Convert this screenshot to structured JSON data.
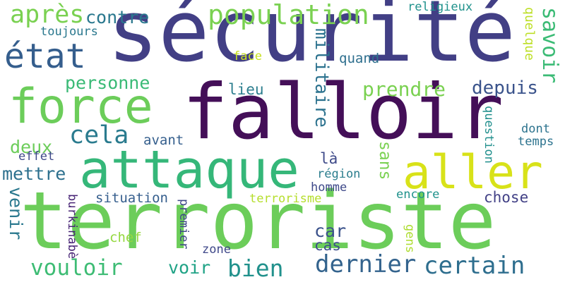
{
  "words": {
    "securite": {
      "text": "sécurité",
      "color": "#423f85"
    },
    "falloir": {
      "text": "falloir",
      "color": "#440f58"
    },
    "terroriste": {
      "text": "terroriste",
      "color": "#6ccd5a"
    },
    "attaque": {
      "text": "attaque",
      "color": "#35b779"
    },
    "aller": {
      "text": "aller",
      "color": "#d8e219"
    },
    "force": {
      "text": "force",
      "color": "#6ccd5a"
    },
    "etat": {
      "text": "état",
      "color": "#355e8d"
    },
    "population": {
      "text": "population",
      "color": "#7ad151"
    },
    "apres": {
      "text": "après",
      "color": "#7ad151"
    },
    "contre": {
      "text": "contre",
      "color": "#2a788e"
    },
    "toujours": {
      "text": "toujours",
      "color": "#2a788e"
    },
    "religieux": {
      "text": "religieux",
      "color": "#20928c"
    },
    "savoir": {
      "text": "savoir",
      "color": "#3bbb75"
    },
    "quelque": {
      "text": "quelque",
      "color": "#bddf26"
    },
    "militaire": {
      "text": "militaire",
      "color": "#2c728e"
    },
    "face": {
      "text": "face",
      "color": "#c8e020"
    },
    "quand": {
      "text": "quand",
      "color": "#2e6f8e"
    },
    "personne": {
      "text": "personne",
      "color": "#3aba76"
    },
    "lieu": {
      "text": "lieu",
      "color": "#2c7e8e"
    },
    "prendre": {
      "text": "prendre",
      "color": "#7ad151"
    },
    "depuis": {
      "text": "depuis",
      "color": "#3a538b"
    },
    "cela": {
      "text": "cela",
      "color": "#2a7b8e"
    },
    "question": {
      "text": "question",
      "color": "#218f8d"
    },
    "dont": {
      "text": "dont",
      "color": "#2c738e"
    },
    "temps": {
      "text": "temps",
      "color": "#2c738e"
    },
    "deux": {
      "text": "deux",
      "color": "#6ccd5a"
    },
    "avant": {
      "text": "avant",
      "color": "#355f8d"
    },
    "effet": {
      "text": "effet",
      "color": "#3e4989"
    },
    "la": {
      "text": "là",
      "color": "#3e4a89"
    },
    "region": {
      "text": "région",
      "color": "#2c7e8e"
    },
    "sans": {
      "text": "sans",
      "color": "#7ad151"
    },
    "mettre": {
      "text": "mettre",
      "color": "#2d708e"
    },
    "homme": {
      "text": "homme",
      "color": "#3e4989"
    },
    "encore": {
      "text": "encore",
      "color": "#20928c"
    },
    "chose": {
      "text": "chose",
      "color": "#424186"
    },
    "venir": {
      "text": "venir",
      "color": "#2a788e"
    },
    "situation": {
      "text": "situation",
      "color": "#355e8d"
    },
    "terrorisme": {
      "text": "terrorisme",
      "color": "#b5de2b"
    },
    "premier": {
      "text": "premier",
      "color": "#3f4788"
    },
    "burkinabe": {
      "text": "burkinabè",
      "color": "#482576"
    },
    "chef": {
      "text": "chef",
      "color": "#95d840"
    },
    "gens": {
      "text": "gens",
      "color": "#addc30"
    },
    "car": {
      "text": "car",
      "color": "#3b528b"
    },
    "cas": {
      "text": "cas",
      "color": "#3d4e8a"
    },
    "zone": {
      "text": "zone",
      "color": "#3f4889"
    },
    "vouloir": {
      "text": "vouloir",
      "color": "#3dbc74"
    },
    "voir": {
      "text": "voir",
      "color": "#20a386"
    },
    "bien": {
      "text": "bien",
      "color": "#21918c"
    },
    "dernier": {
      "text": "dernier",
      "color": "#33638d"
    },
    "certain": {
      "text": "certain",
      "color": "#2e6e8e"
    }
  }
}
